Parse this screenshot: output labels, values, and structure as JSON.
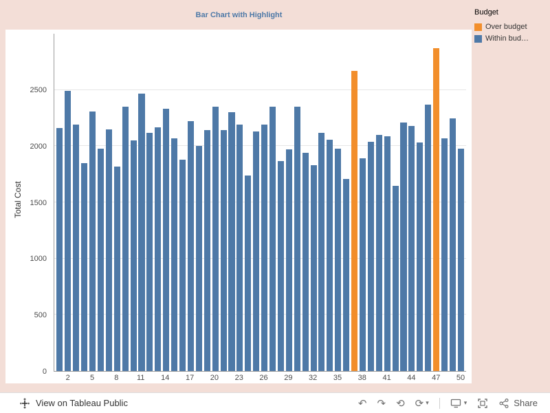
{
  "title": "Bar Chart with Highlight",
  "legend": {
    "title": "Budget",
    "items": [
      {
        "label": "Over budget",
        "color": "#f28e2b"
      },
      {
        "label": "Within bud…",
        "color": "#4e79a7"
      }
    ]
  },
  "chart_data": {
    "type": "bar",
    "title": "Bar Chart with Highlight",
    "xlabel": "",
    "ylabel": "Total Cost",
    "ylim": [
      0,
      3000
    ],
    "yticks": [
      0,
      500,
      1000,
      1500,
      2000,
      2500
    ],
    "xticks": [
      2,
      5,
      8,
      11,
      14,
      17,
      20,
      23,
      26,
      29,
      32,
      35,
      38,
      41,
      44,
      47,
      50
    ],
    "categories": [
      1,
      2,
      3,
      4,
      5,
      6,
      7,
      8,
      9,
      10,
      11,
      12,
      13,
      14,
      15,
      16,
      17,
      18,
      19,
      20,
      21,
      22,
      23,
      24,
      25,
      26,
      27,
      28,
      29,
      30,
      31,
      32,
      33,
      34,
      35,
      36,
      37,
      38,
      39,
      40,
      41,
      42,
      43,
      44,
      45,
      46,
      47,
      48,
      49,
      50
    ],
    "values": [
      2160,
      2490,
      2190,
      1850,
      2310,
      1980,
      2150,
      1820,
      2350,
      2050,
      2470,
      2120,
      2170,
      2330,
      2070,
      1880,
      2220,
      2000,
      2140,
      2350,
      2140,
      2300,
      2190,
      1740,
      2130,
      2190,
      2350,
      1870,
      1970,
      2350,
      1940,
      1830,
      2120,
      2060,
      1980,
      1710,
      2670,
      1890,
      2040,
      2100,
      2090,
      1650,
      2210,
      2180,
      2030,
      2370,
      2870,
      2070,
      2250,
      1980
    ],
    "highlight_indices": [
      37,
      47
    ],
    "colors": {
      "default": "#4e79a7",
      "highlight": "#f28e2b"
    },
    "legend_position": "top-right",
    "grid": true
  },
  "toolbar": {
    "view_label": "View on Tableau Public",
    "share_label": "Share"
  }
}
